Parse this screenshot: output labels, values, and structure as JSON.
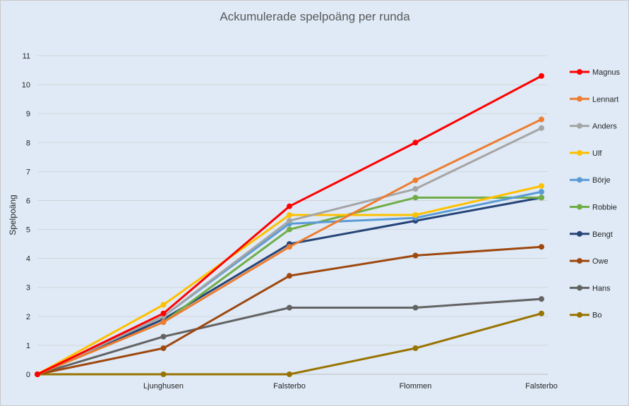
{
  "chart_data": {
    "type": "line",
    "title": "Ackumulerade spelpoäng per runda",
    "xlabel": "",
    "ylabel": "Spelpoäng",
    "categories": [
      "",
      "Ljunghusen",
      "Falsterbo",
      "Flommen",
      "Falsterbo"
    ],
    "ylim": [
      0,
      11
    ],
    "yticks": [
      0,
      1,
      2,
      3,
      4,
      5,
      6,
      7,
      8,
      9,
      10,
      11
    ],
    "grid": true,
    "legend": "right",
    "series": [
      {
        "name": "Magnus",
        "color": "#ff0000",
        "values": [
          0,
          2.1,
          5.8,
          8.0,
          10.3
        ]
      },
      {
        "name": "Lennart",
        "color": "#ed7d31",
        "values": [
          0,
          1.8,
          4.4,
          6.7,
          8.8
        ]
      },
      {
        "name": "Anders",
        "color": "#a5a5a5",
        "values": [
          0,
          2.0,
          5.3,
          6.4,
          8.5
        ]
      },
      {
        "name": "Ulf",
        "color": "#ffc000",
        "values": [
          0,
          2.4,
          5.5,
          5.5,
          6.5
        ]
      },
      {
        "name": "Börje",
        "color": "#5b9bd5",
        "values": [
          0,
          2.0,
          5.2,
          5.4,
          6.3
        ]
      },
      {
        "name": "Robbie",
        "color": "#70ad47",
        "values": [
          0,
          1.8,
          5.0,
          6.1,
          6.1
        ]
      },
      {
        "name": "Bengt",
        "color": "#264478",
        "values": [
          0,
          1.9,
          4.5,
          5.3,
          6.1
        ]
      },
      {
        "name": "Owe",
        "color": "#9e480e",
        "values": [
          0,
          0.9,
          3.4,
          4.1,
          4.4
        ]
      },
      {
        "name": "Hans",
        "color": "#636363",
        "values": [
          0,
          1.3,
          2.3,
          2.3,
          2.6
        ]
      },
      {
        "name": "Bo",
        "color": "#997300",
        "values": [
          0,
          0,
          0,
          0.9,
          2.1
        ]
      }
    ]
  }
}
